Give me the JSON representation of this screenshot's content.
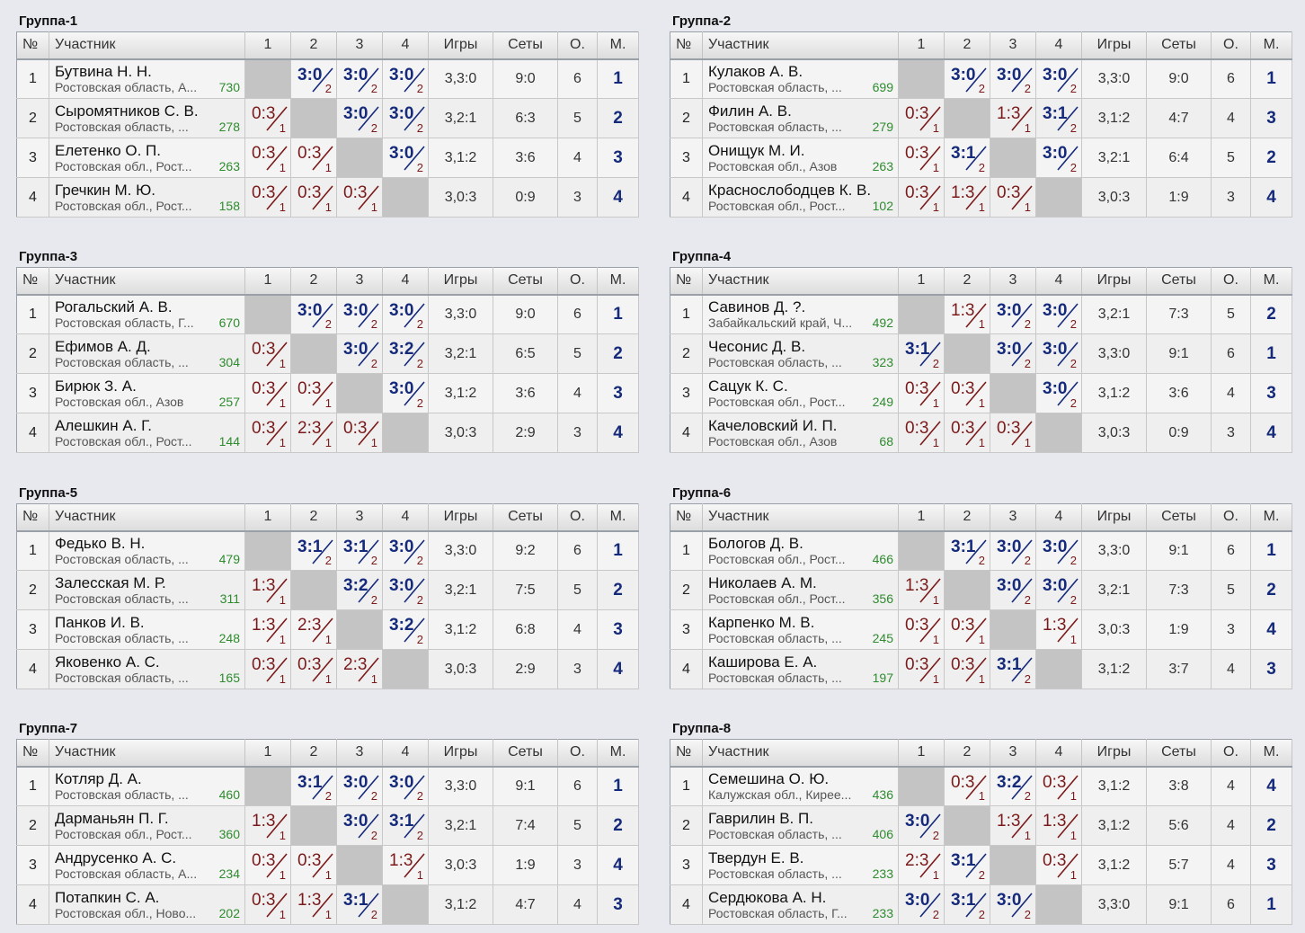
{
  "headers": {
    "no": "№",
    "participant": "Участник",
    "c1": "1",
    "c2": "2",
    "c3": "3",
    "c4": "4",
    "games": "Игры",
    "sets": "Сеты",
    "points": "О.",
    "place": "М."
  },
  "groups": [
    {
      "title": "Группа-1",
      "rows": [
        {
          "num": "1",
          "name": "Бутвина Н. Н.",
          "region": "Ростовская область, А...",
          "rating": "730",
          "results": [
            null,
            [
              "3:0",
              "2"
            ],
            [
              "3:0",
              "2"
            ],
            [
              "3:0",
              "2"
            ]
          ],
          "games": "3,3:0",
          "sets": "9:0",
          "points": "6",
          "place": "1"
        },
        {
          "num": "2",
          "name": "Сыромятников С. В.",
          "region": "Ростовская область, ...",
          "rating": "278",
          "results": [
            [
              "0:3",
              "1"
            ],
            null,
            [
              "3:0",
              "2"
            ],
            [
              "3:0",
              "2"
            ]
          ],
          "games": "3,2:1",
          "sets": "6:3",
          "points": "5",
          "place": "2"
        },
        {
          "num": "3",
          "name": "Елетенко О. П.",
          "region": "Ростовская обл., Рост...",
          "rating": "263",
          "results": [
            [
              "0:3",
              "1"
            ],
            [
              "0:3",
              "1"
            ],
            null,
            [
              "3:0",
              "2"
            ]
          ],
          "games": "3,1:2",
          "sets": "3:6",
          "points": "4",
          "place": "3"
        },
        {
          "num": "4",
          "name": "Гречкин М. Ю.",
          "region": "Ростовская обл., Рост...",
          "rating": "158",
          "results": [
            [
              "0:3",
              "1"
            ],
            [
              "0:3",
              "1"
            ],
            [
              "0:3",
              "1"
            ],
            null
          ],
          "games": "3,0:3",
          "sets": "0:9",
          "points": "3",
          "place": "4"
        }
      ]
    },
    {
      "title": "Группа-2",
      "rows": [
        {
          "num": "1",
          "name": "Кулаков А. В.",
          "region": "Ростовская область, ...",
          "rating": "699",
          "results": [
            null,
            [
              "3:0",
              "2"
            ],
            [
              "3:0",
              "2"
            ],
            [
              "3:0",
              "2"
            ]
          ],
          "games": "3,3:0",
          "sets": "9:0",
          "points": "6",
          "place": "1"
        },
        {
          "num": "2",
          "name": "Филин А. В.",
          "region": "Ростовская область, ...",
          "rating": "279",
          "results": [
            [
              "0:3",
              "1"
            ],
            null,
            [
              "1:3",
              "1"
            ],
            [
              "3:1",
              "2"
            ]
          ],
          "games": "3,1:2",
          "sets": "4:7",
          "points": "4",
          "place": "3"
        },
        {
          "num": "3",
          "name": "Онищук М. И.",
          "region": "Ростовская обл., Азов",
          "rating": "263",
          "results": [
            [
              "0:3",
              "1"
            ],
            [
              "3:1",
              "2"
            ],
            null,
            [
              "3:0",
              "2"
            ]
          ],
          "games": "3,2:1",
          "sets": "6:4",
          "points": "5",
          "place": "2"
        },
        {
          "num": "4",
          "name": "Краснослободцев К. В.",
          "region": "Ростовская обл., Рост...",
          "rating": "102",
          "results": [
            [
              "0:3",
              "1"
            ],
            [
              "1:3",
              "1"
            ],
            [
              "0:3",
              "1"
            ],
            null
          ],
          "games": "3,0:3",
          "sets": "1:9",
          "points": "3",
          "place": "4"
        }
      ]
    },
    {
      "title": "Группа-3",
      "rows": [
        {
          "num": "1",
          "name": "Рогальский А. В.",
          "region": "Ростовская область, Г...",
          "rating": "670",
          "results": [
            null,
            [
              "3:0",
              "2"
            ],
            [
              "3:0",
              "2"
            ],
            [
              "3:0",
              "2"
            ]
          ],
          "games": "3,3:0",
          "sets": "9:0",
          "points": "6",
          "place": "1"
        },
        {
          "num": "2",
          "name": "Ефимов А. Д.",
          "region": "Ростовская область, ...",
          "rating": "304",
          "results": [
            [
              "0:3",
              "1"
            ],
            null,
            [
              "3:0",
              "2"
            ],
            [
              "3:2",
              "2"
            ]
          ],
          "games": "3,2:1",
          "sets": "6:5",
          "points": "5",
          "place": "2"
        },
        {
          "num": "3",
          "name": "Бирюк З. А.",
          "region": "Ростовская обл., Азов",
          "rating": "257",
          "results": [
            [
              "0:3",
              "1"
            ],
            [
              "0:3",
              "1"
            ],
            null,
            [
              "3:0",
              "2"
            ]
          ],
          "games": "3,1:2",
          "sets": "3:6",
          "points": "4",
          "place": "3"
        },
        {
          "num": "4",
          "name": "Алешкин А. Г.",
          "region": "Ростовская обл., Рост...",
          "rating": "144",
          "results": [
            [
              "0:3",
              "1"
            ],
            [
              "2:3",
              "1"
            ],
            [
              "0:3",
              "1"
            ],
            null
          ],
          "games": "3,0:3",
          "sets": "2:9",
          "points": "3",
          "place": "4"
        }
      ]
    },
    {
      "title": "Группа-4",
      "rows": [
        {
          "num": "1",
          "name": "Савинов Д. ?.",
          "region": "Забайкальский край, Ч...",
          "rating": "492",
          "results": [
            null,
            [
              "1:3",
              "1"
            ],
            [
              "3:0",
              "2"
            ],
            [
              "3:0",
              "2"
            ]
          ],
          "games": "3,2:1",
          "sets": "7:3",
          "points": "5",
          "place": "2"
        },
        {
          "num": "2",
          "name": "Чесонис Д. В.",
          "region": "Ростовская область, ...",
          "rating": "323",
          "results": [
            [
              "3:1",
              "2"
            ],
            null,
            [
              "3:0",
              "2"
            ],
            [
              "3:0",
              "2"
            ]
          ],
          "games": "3,3:0",
          "sets": "9:1",
          "points": "6",
          "place": "1"
        },
        {
          "num": "3",
          "name": "Сацук К. С.",
          "region": "Ростовская обл., Рост...",
          "rating": "249",
          "results": [
            [
              "0:3",
              "1"
            ],
            [
              "0:3",
              "1"
            ],
            null,
            [
              "3:0",
              "2"
            ]
          ],
          "games": "3,1:2",
          "sets": "3:6",
          "points": "4",
          "place": "3"
        },
        {
          "num": "4",
          "name": "Качеловский И. П.",
          "region": "Ростовская обл., Азов",
          "rating": "68",
          "results": [
            [
              "0:3",
              "1"
            ],
            [
              "0:3",
              "1"
            ],
            [
              "0:3",
              "1"
            ],
            null
          ],
          "games": "3,0:3",
          "sets": "0:9",
          "points": "3",
          "place": "4"
        }
      ]
    },
    {
      "title": "Группа-5",
      "rows": [
        {
          "num": "1",
          "name": "Федько В. Н.",
          "region": "Ростовская область, ...",
          "rating": "479",
          "results": [
            null,
            [
              "3:1",
              "2"
            ],
            [
              "3:1",
              "2"
            ],
            [
              "3:0",
              "2"
            ]
          ],
          "games": "3,3:0",
          "sets": "9:2",
          "points": "6",
          "place": "1"
        },
        {
          "num": "2",
          "name": "Залесская М. Р.",
          "region": "Ростовская область, ...",
          "rating": "311",
          "results": [
            [
              "1:3",
              "1"
            ],
            null,
            [
              "3:2",
              "2"
            ],
            [
              "3:0",
              "2"
            ]
          ],
          "games": "3,2:1",
          "sets": "7:5",
          "points": "5",
          "place": "2"
        },
        {
          "num": "3",
          "name": "Панков И. В.",
          "region": "Ростовская область, ...",
          "rating": "248",
          "results": [
            [
              "1:3",
              "1"
            ],
            [
              "2:3",
              "1"
            ],
            null,
            [
              "3:2",
              "2"
            ]
          ],
          "games": "3,1:2",
          "sets": "6:8",
          "points": "4",
          "place": "3"
        },
        {
          "num": "4",
          "name": "Яковенко А. С.",
          "region": "Ростовская область, ...",
          "rating": "165",
          "results": [
            [
              "0:3",
              "1"
            ],
            [
              "0:3",
              "1"
            ],
            [
              "2:3",
              "1"
            ],
            null
          ],
          "games": "3,0:3",
          "sets": "2:9",
          "points": "3",
          "place": "4"
        }
      ]
    },
    {
      "title": "Группа-6",
      "rows": [
        {
          "num": "1",
          "name": "Бологов Д. В.",
          "region": "Ростовская обл., Рост...",
          "rating": "466",
          "results": [
            null,
            [
              "3:1",
              "2"
            ],
            [
              "3:0",
              "2"
            ],
            [
              "3:0",
              "2"
            ]
          ],
          "games": "3,3:0",
          "sets": "9:1",
          "points": "6",
          "place": "1"
        },
        {
          "num": "2",
          "name": "Николаев А. М.",
          "region": "Ростовская обл., Рост...",
          "rating": "356",
          "results": [
            [
              "1:3",
              "1"
            ],
            null,
            [
              "3:0",
              "2"
            ],
            [
              "3:0",
              "2"
            ]
          ],
          "games": "3,2:1",
          "sets": "7:3",
          "points": "5",
          "place": "2"
        },
        {
          "num": "3",
          "name": "Карпенко М. В.",
          "region": "Ростовская область, ...",
          "rating": "245",
          "results": [
            [
              "0:3",
              "1"
            ],
            [
              "0:3",
              "1"
            ],
            null,
            [
              "1:3",
              "1"
            ]
          ],
          "games": "3,0:3",
          "sets": "1:9",
          "points": "3",
          "place": "4"
        },
        {
          "num": "4",
          "name": "Каширова Е. А.",
          "region": "Ростовская область, ...",
          "rating": "197",
          "results": [
            [
              "0:3",
              "1"
            ],
            [
              "0:3",
              "1"
            ],
            [
              "3:1",
              "2"
            ],
            null
          ],
          "games": "3,1:2",
          "sets": "3:7",
          "points": "4",
          "place": "3"
        }
      ]
    },
    {
      "title": "Группа-7",
      "rows": [
        {
          "num": "1",
          "name": "Котляр Д. А.",
          "region": "Ростовская область, ...",
          "rating": "460",
          "results": [
            null,
            [
              "3:1",
              "2"
            ],
            [
              "3:0",
              "2"
            ],
            [
              "3:0",
              "2"
            ]
          ],
          "games": "3,3:0",
          "sets": "9:1",
          "points": "6",
          "place": "1"
        },
        {
          "num": "2",
          "name": "Дарманьян П. Г.",
          "region": "Ростовская обл., Рост...",
          "rating": "360",
          "results": [
            [
              "1:3",
              "1"
            ],
            null,
            [
              "3:0",
              "2"
            ],
            [
              "3:1",
              "2"
            ]
          ],
          "games": "3,2:1",
          "sets": "7:4",
          "points": "5",
          "place": "2"
        },
        {
          "num": "3",
          "name": "Андрусенко А. С.",
          "region": "Ростовская область, А...",
          "rating": "234",
          "results": [
            [
              "0:3",
              "1"
            ],
            [
              "0:3",
              "1"
            ],
            null,
            [
              "1:3",
              "1"
            ]
          ],
          "games": "3,0:3",
          "sets": "1:9",
          "points": "3",
          "place": "4"
        },
        {
          "num": "4",
          "name": "Потапкин С. А.",
          "region": "Ростовская обл., Ново...",
          "rating": "202",
          "results": [
            [
              "0:3",
              "1"
            ],
            [
              "1:3",
              "1"
            ],
            [
              "3:1",
              "2"
            ],
            null
          ],
          "games": "3,1:2",
          "sets": "4:7",
          "points": "4",
          "place": "3"
        }
      ]
    },
    {
      "title": "Группа-8",
      "rows": [
        {
          "num": "1",
          "name": "Семешина О. Ю.",
          "region": "Калужская обл., Кирее...",
          "rating": "436",
          "results": [
            null,
            [
              "0:3",
              "1"
            ],
            [
              "3:2",
              "2"
            ],
            [
              "0:3",
              "1"
            ]
          ],
          "games": "3,1:2",
          "sets": "3:8",
          "points": "4",
          "place": "4"
        },
        {
          "num": "2",
          "name": "Гаврилин В. П.",
          "region": "Ростовская область, ...",
          "rating": "406",
          "results": [
            [
              "3:0",
              "2"
            ],
            null,
            [
              "1:3",
              "1"
            ],
            [
              "1:3",
              "1"
            ]
          ],
          "games": "3,1:2",
          "sets": "5:6",
          "points": "4",
          "place": "2"
        },
        {
          "num": "3",
          "name": "Твердун Е. В.",
          "region": "Ростовская область, ...",
          "rating": "233",
          "results": [
            [
              "2:3",
              "1"
            ],
            [
              "3:1",
              "2"
            ],
            null,
            [
              "0:3",
              "1"
            ]
          ],
          "games": "3,1:2",
          "sets": "5:7",
          "points": "4",
          "place": "3"
        },
        {
          "num": "4",
          "name": "Сердюкова А. Н.",
          "region": "Ростовская область, Г...",
          "rating": "233",
          "results": [
            [
              "3:0",
              "2"
            ],
            [
              "3:1",
              "2"
            ],
            [
              "3:0",
              "2"
            ],
            null
          ],
          "games": "3,3:0",
          "sets": "9:1",
          "points": "6",
          "place": "1"
        }
      ]
    }
  ]
}
